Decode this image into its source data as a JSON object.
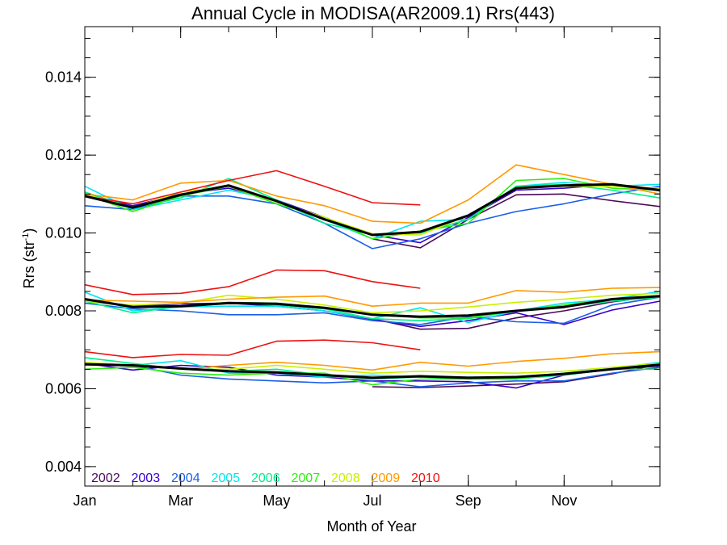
{
  "chart_data": {
    "type": "line",
    "title": "Annual Cycle in MODISA(AR2009.1) Rrs(443)",
    "xlabel": "Month of Year",
    "ylabel": "Rrs (str",
    "ylabel_sup": "-1",
    "ylabel_close": ")",
    "xlim": [
      1,
      13
    ],
    "ylim": [
      0.0035,
      0.0153
    ],
    "x_ticks": [
      {
        "value": 1,
        "label": "Jan"
      },
      {
        "value": 3,
        "label": "Mar"
      },
      {
        "value": 5,
        "label": "May"
      },
      {
        "value": 7,
        "label": "Jul"
      },
      {
        "value": 9,
        "label": "Sep"
      },
      {
        "value": 11,
        "label": "Nov"
      }
    ],
    "y_ticks": [
      {
        "value": 0.004,
        "label": "0.004"
      },
      {
        "value": 0.006,
        "label": "0.006"
      },
      {
        "value": 0.008,
        "label": "0.008"
      },
      {
        "value": 0.01,
        "label": "0.010"
      },
      {
        "value": 0.012,
        "label": "0.012"
      },
      {
        "value": 0.014,
        "label": "0.014"
      }
    ],
    "x_minor_step": 1,
    "y_minor_step": 0.0005,
    "grid": false,
    "legend": "bottom-left",
    "series": [
      {
        "name": "2002",
        "color": "#4a0a5a",
        "width": 1.6,
        "groups": [
          {
            "x": [
              7,
              8,
              9,
              10,
              11,
              12,
              13
            ],
            "y": [
              0.00985,
              0.00962,
              0.01035,
              0.01098,
              0.011,
              0.01083,
              0.01068
            ]
          },
          {
            "x": [
              7,
              8,
              9,
              10,
              11,
              12,
              13
            ],
            "y": [
              0.0078,
              0.00753,
              0.00755,
              0.00782,
              0.008,
              0.00823,
              0.00838
            ]
          },
          {
            "x": [
              7,
              8,
              9,
              10,
              11,
              12,
              13
            ],
            "y": [
              0.00605,
              0.00603,
              0.00607,
              0.00612,
              0.00618,
              0.00638,
              0.00663
            ]
          }
        ]
      },
      {
        "name": "2003",
        "color": "#3500cc",
        "width": 1.6,
        "groups": [
          {
            "x": [
              1,
              2,
              3,
              4,
              5,
              6,
              7,
              8,
              9,
              10,
              11,
              12,
              13
            ],
            "y": [
              0.011,
              0.0107,
              0.011,
              0.01115,
              0.01085,
              0.0104,
              0.00995,
              0.00975,
              0.0104,
              0.0111,
              0.01115,
              0.01125,
              0.01108
            ]
          },
          {
            "x": [
              1,
              2,
              3,
              4,
              5,
              6,
              7,
              8,
              9,
              10,
              11,
              12,
              13
            ],
            "y": [
              0.0083,
              0.00812,
              0.00818,
              0.0082,
              0.00812,
              0.008,
              0.00778,
              0.0076,
              0.00775,
              0.00795,
              0.00765,
              0.00802,
              0.00825
            ]
          },
          {
            "x": [
              1,
              2,
              3,
              4,
              5,
              6,
              7,
              8,
              9,
              10,
              11,
              12,
              13
            ],
            "y": [
              0.00665,
              0.00648,
              0.0066,
              0.00655,
              0.00635,
              0.0063,
              0.0062,
              0.0062,
              0.00618,
              0.00602,
              0.00635,
              0.0065,
              0.00658
            ]
          }
        ]
      },
      {
        "name": "2004",
        "color": "#1a5fe6",
        "width": 1.6,
        "groups": [
          {
            "x": [
              1,
              2,
              3,
              4,
              5,
              6,
              7,
              8,
              9,
              10,
              11,
              12,
              13
            ],
            "y": [
              0.0107,
              0.0106,
              0.01095,
              0.01095,
              0.01075,
              0.01025,
              0.0096,
              0.00985,
              0.01025,
              0.01055,
              0.01075,
              0.011,
              0.0112
            ]
          },
          {
            "x": [
              1,
              2,
              3,
              4,
              5,
              6,
              7,
              8,
              9,
              10,
              11,
              12,
              13
            ],
            "y": [
              0.0082,
              0.00805,
              0.008,
              0.0079,
              0.0079,
              0.00795,
              0.00775,
              0.00765,
              0.00785,
              0.00772,
              0.00768,
              0.00815,
              0.00835
            ]
          },
          {
            "x": [
              1,
              2,
              3,
              4,
              5,
              6,
              7,
              8,
              9,
              10,
              11,
              12,
              13
            ],
            "y": [
              0.00665,
              0.0066,
              0.00635,
              0.00625,
              0.0062,
              0.00615,
              0.0062,
              0.00605,
              0.00615,
              0.0062,
              0.0062,
              0.0064,
              0.00655
            ]
          }
        ]
      },
      {
        "name": "2005",
        "color": "#00e5ee",
        "width": 1.6,
        "groups": [
          {
            "x": [
              1,
              2,
              3,
              4,
              5,
              6,
              7,
              8,
              9,
              10,
              11,
              12,
              13
            ],
            "y": [
              0.0112,
              0.0106,
              0.01085,
              0.0111,
              0.01085,
              0.01035,
              0.00985,
              0.0103,
              0.01035,
              0.0112,
              0.0113,
              0.0112,
              0.01125
            ]
          },
          {
            "x": [
              1,
              2,
              3,
              4,
              5,
              6,
              7,
              8,
              9,
              10,
              11,
              12,
              13
            ],
            "y": [
              0.00848,
              0.008,
              0.0081,
              0.00812,
              0.00812,
              0.008,
              0.0078,
              0.00808,
              0.0077,
              0.008,
              0.0082,
              0.0083,
              0.0085
            ]
          },
          {
            "x": [
              1,
              2,
              3,
              4,
              5,
              6,
              7,
              8,
              9,
              10,
              11,
              12,
              13
            ],
            "y": [
              0.00665,
              0.0066,
              0.00672,
              0.0064,
              0.0064,
              0.0063,
              0.00635,
              0.0063,
              0.0063,
              0.0063,
              0.0064,
              0.00652,
              0.00668
            ]
          }
        ]
      },
      {
        "name": "2006",
        "color": "#00ee8a",
        "width": 1.6,
        "groups": [
          {
            "x": [
              1,
              2,
              3,
              4,
              5,
              6,
              7,
              8,
              9,
              10,
              11,
              12,
              13
            ],
            "y": [
              0.01105,
              0.01065,
              0.0109,
              0.0114,
              0.01085,
              0.01025,
              0.00995,
              0.01,
              0.01035,
              0.0112,
              0.01125,
              0.0111,
              0.0109
            ]
          },
          {
            "x": [
              1,
              2,
              3,
              4,
              5,
              6,
              7,
              8,
              9,
              10,
              11,
              12,
              13
            ],
            "y": [
              0.00825,
              0.00795,
              0.00812,
              0.00822,
              0.00815,
              0.00805,
              0.0078,
              0.00775,
              0.0078,
              0.008,
              0.0081,
              0.00825,
              0.00835
            ]
          },
          {
            "x": [
              1,
              2,
              3,
              4,
              5,
              6,
              7,
              8,
              9,
              10,
              11,
              12,
              13
            ],
            "y": [
              0.0068,
              0.00665,
              0.0065,
              0.00645,
              0.0065,
              0.00635,
              0.00625,
              0.0063,
              0.00625,
              0.00625,
              0.00635,
              0.0065,
              0.0066
            ]
          }
        ]
      },
      {
        "name": "2007",
        "color": "#2aee10",
        "width": 1.6,
        "groups": [
          {
            "x": [
              1,
              2,
              3,
              4,
              5,
              6,
              7,
              8,
              9,
              10,
              11,
              12,
              13
            ],
            "y": [
              0.011,
              0.01055,
              0.01095,
              0.0112,
              0.01075,
              0.0104,
              0.00985,
              0.01005,
              0.01025,
              0.01135,
              0.0114,
              0.01115,
              0.0111
            ]
          },
          {
            "x": [
              1,
              2,
              3,
              4,
              5,
              6,
              7,
              8,
              9,
              10,
              11,
              12,
              13
            ],
            "y": [
              0.00825,
              0.00812,
              0.00812,
              0.00822,
              0.0082,
              0.00808,
              0.0079,
              0.00782,
              0.00782,
              0.008,
              0.00815,
              0.0083,
              0.00835
            ]
          },
          {
            "x": [
              1,
              2,
              3,
              4,
              5,
              6,
              7,
              8,
              9,
              10,
              11,
              12,
              13
            ],
            "y": [
              0.0065,
              0.00655,
              0.0064,
              0.00635,
              0.0064,
              0.0064,
              0.0061,
              0.00625,
              0.00625,
              0.00625,
              0.0064,
              0.0065,
              0.0065
            ]
          }
        ]
      },
      {
        "name": "2008",
        "color": "#c8f000",
        "width": 1.6,
        "groups": [
          {
            "x": [
              1,
              2,
              3,
              4,
              5,
              6,
              7,
              8,
              9,
              10,
              11,
              12,
              13
            ],
            "y": [
              0.011,
              0.01065,
              0.01105,
              0.0112,
              0.0108,
              0.0104,
              0.00998,
              0.00995,
              0.01045,
              0.01115,
              0.0112,
              0.0112,
              0.01115
            ]
          },
          {
            "x": [
              1,
              2,
              3,
              4,
              5,
              6,
              7,
              8,
              9,
              10,
              11,
              12,
              13
            ],
            "y": [
              0.00825,
              0.00815,
              0.0082,
              0.0084,
              0.0083,
              0.00815,
              0.00795,
              0.008,
              0.0081,
              0.00822,
              0.0083,
              0.0084,
              0.00845
            ]
          },
          {
            "x": [
              1,
              2,
              3,
              4,
              5,
              6,
              7,
              8,
              9,
              10,
              11,
              12,
              13
            ],
            "y": [
              0.00668,
              0.0066,
              0.0065,
              0.0065,
              0.0066,
              0.0065,
              0.0064,
              0.00645,
              0.00642,
              0.0064,
              0.00645,
              0.00655,
              0.00665
            ]
          }
        ]
      },
      {
        "name": "2009",
        "color": "#ff9900",
        "width": 1.6,
        "groups": [
          {
            "x": [
              1,
              2,
              3,
              4,
              5,
              6,
              7,
              8,
              9,
              10,
              11,
              12,
              13
            ],
            "y": [
              0.011,
              0.01085,
              0.01128,
              0.01135,
              0.01095,
              0.0107,
              0.0103,
              0.01025,
              0.01085,
              0.01175,
              0.0115,
              0.01125,
              0.011
            ]
          },
          {
            "x": [
              1,
              2,
              3,
              4,
              5,
              6,
              7,
              8,
              9,
              10,
              11,
              12,
              13
            ],
            "y": [
              0.00828,
              0.00825,
              0.00822,
              0.0083,
              0.00835,
              0.00838,
              0.00812,
              0.0082,
              0.0082,
              0.00852,
              0.00848,
              0.00858,
              0.0086
            ]
          },
          {
            "x": [
              1,
              2,
              3,
              4,
              5,
              6,
              7,
              8,
              9,
              10,
              11,
              12,
              13
            ],
            "y": [
              0.0066,
              0.0066,
              0.0065,
              0.0066,
              0.00668,
              0.0066,
              0.00648,
              0.00668,
              0.00658,
              0.0067,
              0.00678,
              0.0069,
              0.00695
            ]
          }
        ]
      },
      {
        "name": "2010",
        "color": "#ee1111",
        "width": 1.6,
        "groups": [
          {
            "x": [
              1,
              2,
              3,
              4,
              5,
              6,
              7,
              8
            ],
            "y": [
              0.01095,
              0.01075,
              0.01105,
              0.01135,
              0.0116,
              0.0112,
              0.01078,
              0.01072
            ]
          },
          {
            "x": [
              1,
              2,
              3,
              4,
              5,
              6,
              7,
              8
            ],
            "y": [
              0.00867,
              0.00842,
              0.00845,
              0.00862,
              0.00905,
              0.00903,
              0.00875,
              0.00858
            ]
          },
          {
            "x": [
              1,
              2,
              3,
              4,
              5,
              6,
              7,
              8
            ],
            "y": [
              0.00695,
              0.0068,
              0.00688,
              0.00686,
              0.00722,
              0.00725,
              0.00718,
              0.007
            ]
          }
        ]
      },
      {
        "name": "",
        "color": "#000000",
        "width": 3,
        "groups": [
          {
            "x": [
              1,
              2,
              3,
              4,
              5,
              6,
              7,
              8,
              9,
              10,
              11,
              12,
              13
            ],
            "y": [
              0.01095,
              0.01065,
              0.01098,
              0.01122,
              0.01082,
              0.01035,
              0.00995,
              0.01003,
              0.01045,
              0.01115,
              0.01122,
              0.01125,
              0.0111
            ]
          },
          {
            "x": [
              1,
              2,
              3,
              4,
              5,
              6,
              7,
              8,
              9,
              10,
              11,
              12,
              13
            ],
            "y": [
              0.0083,
              0.0081,
              0.00812,
              0.0082,
              0.00818,
              0.00808,
              0.0079,
              0.00785,
              0.00788,
              0.008,
              0.0081,
              0.0083,
              0.00838
            ]
          },
          {
            "x": [
              1,
              2,
              3,
              4,
              5,
              6,
              7,
              8,
              9,
              10,
              11,
              12,
              13
            ],
            "y": [
              0.00663,
              0.0066,
              0.00652,
              0.00645,
              0.00642,
              0.00635,
              0.00628,
              0.00632,
              0.00628,
              0.0063,
              0.00638,
              0.0065,
              0.00662
            ]
          }
        ]
      }
    ]
  }
}
